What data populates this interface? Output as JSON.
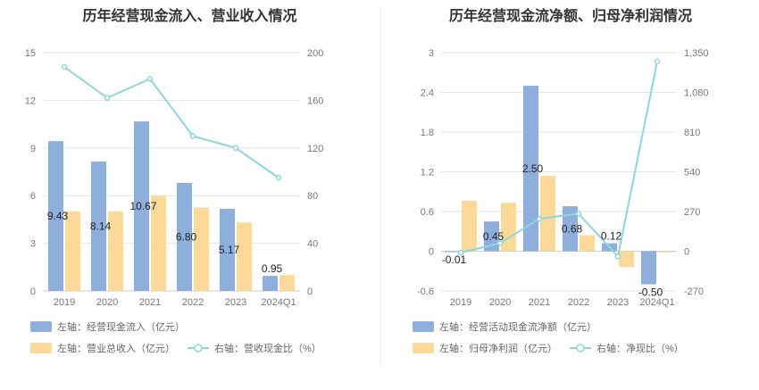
{
  "charts": [
    {
      "id": "left",
      "title": "历年经营现金流入、营业收入情况",
      "chart_data": {
        "type": "bar",
        "categories": [
          "2019",
          "2020",
          "2021",
          "2022",
          "2023",
          "2024Q1"
        ],
        "series": [
          {
            "name": "左轴：经营现金流入（亿元）",
            "type": "bar",
            "axis": "left",
            "color": "#8eaedc",
            "values": [
              9.43,
              8.14,
              10.67,
              6.8,
              5.17,
              0.95
            ],
            "labels": [
              "9.43",
              "8.14",
              "10.67",
              "6.80",
              "5.17",
              "0.95"
            ]
          },
          {
            "name": "左轴：营业总收入（亿元）",
            "type": "bar",
            "axis": "left",
            "color": "#fcd999",
            "values": [
              5.0,
              5.0,
              6.0,
              5.25,
              4.3,
              1.0
            ]
          },
          {
            "name": "右轴：营收现金比（%）",
            "type": "line",
            "axis": "right",
            "color": "#8ed6dd",
            "values": [
              188,
              162,
              178,
              130,
              120,
              95
            ]
          }
        ],
        "y_left": {
          "min": 0,
          "max": 15,
          "ticks": [
            "0",
            "3",
            "6",
            "9",
            "12",
            "15"
          ]
        },
        "y_right": {
          "min": 0,
          "max": 200,
          "ticks": [
            "0",
            "40",
            "80",
            "120",
            "160",
            "200"
          ]
        },
        "grid": true,
        "legend_position": "bottom"
      }
    },
    {
      "id": "right",
      "title": "历年经营现金流净额、归母净利润情况",
      "chart_data": {
        "type": "bar",
        "categories": [
          "2019",
          "2020",
          "2021",
          "2022",
          "2023",
          "2024Q1"
        ],
        "series": [
          {
            "name": "左轴：经营活动现金流净额（亿元）",
            "type": "bar",
            "axis": "left",
            "color": "#8eaedc",
            "values": [
              -0.01,
              0.45,
              2.5,
              0.68,
              0.12,
              -0.5
            ],
            "labels": [
              "-0.01",
              "0.45",
              "2.50",
              "0.68",
              "0.12",
              "-0.50"
            ]
          },
          {
            "name": "左轴：归母净利润（亿元）",
            "type": "bar",
            "axis": "left",
            "color": "#fcd999",
            "values": [
              0.76,
              0.73,
              1.14,
              0.24,
              -0.24,
              -0.02
            ]
          },
          {
            "name": "右轴：净现比（%）",
            "type": "line",
            "axis": "right",
            "color": "#8ed6dd",
            "values": [
              -10,
              55,
              220,
              255,
              -35,
              1290
            ]
          }
        ],
        "y_left": {
          "min": -0.6,
          "max": 3,
          "ticks": [
            "-0.6",
            "0",
            "0.6",
            "1.2",
            "1.8",
            "2.4",
            "3"
          ]
        },
        "y_right": {
          "min": -270,
          "max": 1350,
          "ticks": [
            "-270",
            "0",
            "270",
            "540",
            "810",
            "1,080",
            "1,350"
          ]
        },
        "grid": true,
        "legend_position": "bottom"
      }
    }
  ]
}
